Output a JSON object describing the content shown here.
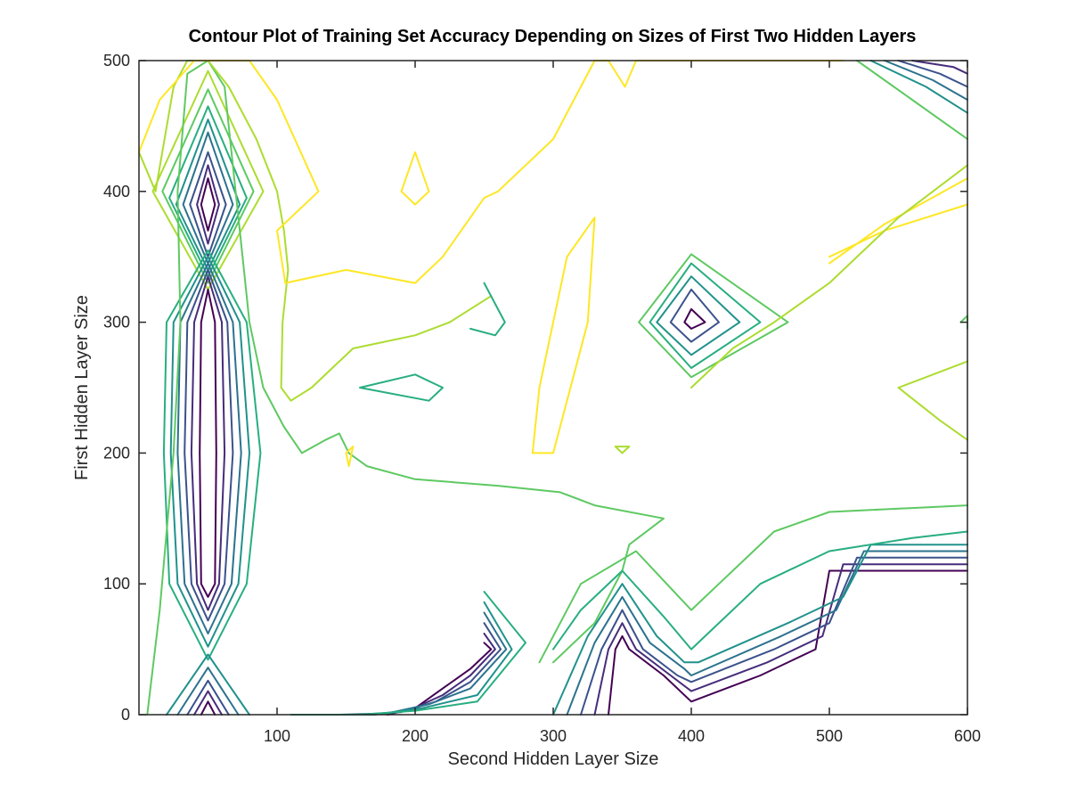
{
  "chart_data": {
    "type": "contour",
    "title": "Contour Plot of Training Set Accuracy Depending on Sizes of First Two Hidden Layers",
    "xlabel": "Second Hidden Layer Size",
    "ylabel": "First Hidden Layer Size",
    "xlim": [
      0,
      600
    ],
    "ylim": [
      0,
      500
    ],
    "xticks": [
      100,
      200,
      300,
      400,
      500,
      600
    ],
    "yticks": [
      0,
      100,
      200,
      300,
      400,
      500
    ],
    "grid": false,
    "colormap": "viridis",
    "colors": [
      "#440154",
      "#472d7b",
      "#3b528b",
      "#2c728e",
      "#21918c",
      "#28ae80",
      "#5ec962",
      "#addc30",
      "#fde725"
    ],
    "contours": [
      {
        "level": 1,
        "x": [
          50,
          55,
          50,
          45,
          50
        ],
        "y": [
          410,
          390,
          370,
          390,
          410
        ]
      },
      {
        "level": 2,
        "x": [
          50,
          58,
          50,
          42,
          50
        ],
        "y": [
          420,
          390,
          360,
          390,
          420
        ]
      },
      {
        "level": 3,
        "x": [
          50,
          63,
          50,
          37,
          50
        ],
        "y": [
          430,
          390,
          350,
          390,
          430
        ]
      },
      {
        "level": 4,
        "x": [
          50,
          68,
          50,
          32,
          50
        ],
        "y": [
          445,
          390,
          345,
          390,
          445
        ]
      },
      {
        "level": 5,
        "x": [
          50,
          73,
          50,
          27,
          50
        ],
        "y": [
          455,
          390,
          340,
          390,
          455
        ]
      },
      {
        "level": 6,
        "x": [
          50,
          78,
          50,
          22,
          50
        ],
        "y": [
          465,
          395,
          335,
          395,
          465
        ]
      },
      {
        "level": 7,
        "x": [
          50,
          83,
          50,
          17,
          50
        ],
        "y": [
          478,
          400,
          330,
          400,
          478
        ]
      },
      {
        "level": 8,
        "x": [
          50,
          90,
          50,
          10,
          50
        ],
        "y": [
          492,
          400,
          325,
          400,
          492
        ]
      },
      {
        "level": 1,
        "x": [
          50,
          55,
          56,
          55,
          50,
          45,
          44,
          45,
          50
        ],
        "y": [
          325,
          300,
          200,
          100,
          90,
          100,
          200,
          300,
          325
        ]
      },
      {
        "level": 2,
        "x": [
          50,
          60,
          62,
          58,
          50,
          42,
          38,
          40,
          50
        ],
        "y": [
          335,
          300,
          200,
          100,
          80,
          100,
          200,
          300,
          335
        ]
      },
      {
        "level": 3,
        "x": [
          50,
          64,
          68,
          62,
          50,
          38,
          33,
          35,
          50
        ],
        "y": [
          340,
          300,
          200,
          100,
          72,
          100,
          200,
          300,
          340
        ]
      },
      {
        "level": 4,
        "x": [
          50,
          68,
          74,
          67,
          50,
          33,
          28,
          30,
          50
        ],
        "y": [
          345,
          300,
          200,
          100,
          62,
          100,
          200,
          300,
          345
        ]
      },
      {
        "level": 5,
        "x": [
          50,
          73,
          80,
          72,
          50,
          28,
          23,
          25,
          50
        ],
        "y": [
          350,
          300,
          200,
          100,
          52,
          100,
          200,
          300,
          350
        ]
      },
      {
        "level": 6,
        "x": [
          50,
          78,
          88,
          78,
          50,
          22,
          18,
          20,
          50
        ],
        "y": [
          355,
          300,
          200,
          100,
          42,
          100,
          200,
          300,
          355
        ]
      },
      {
        "level": 1,
        "x": [
          45,
          50,
          55
        ],
        "y": [
          0,
          10,
          0
        ]
      },
      {
        "level": 2,
        "x": [
          40,
          50,
          60
        ],
        "y": [
          0,
          18,
          0
        ]
      },
      {
        "level": 3,
        "x": [
          35,
          50,
          65
        ],
        "y": [
          0,
          26,
          0
        ]
      },
      {
        "level": 4,
        "x": [
          28,
          50,
          72
        ],
        "y": [
          0,
          36,
          0
        ]
      },
      {
        "level": 5,
        "x": [
          20,
          50,
          80
        ],
        "y": [
          0,
          46,
          0
        ]
      },
      {
        "level": 7,
        "x": [
          6,
          15,
          25,
          30,
          28,
          35,
          50,
          62,
          70,
          75,
          80,
          90,
          105,
          118,
          135,
          145,
          152,
          165,
          200,
          260,
          305,
          330,
          380,
          355,
          350,
          340,
          330,
          320,
          300
        ],
        "y": [
          0,
          80,
          200,
          300,
          400,
          490,
          500,
          480,
          400,
          350,
          300,
          250,
          220,
          200,
          210,
          215,
          200,
          190,
          180,
          175,
          170,
          160,
          150,
          130,
          110,
          90,
          70,
          60,
          40
        ]
      },
      {
        "level": 8,
        "x": [
          0,
          12,
          25,
          35,
          50,
          65,
          85,
          100,
          105,
          108,
          104,
          103,
          110,
          125,
          155,
          200,
          225,
          255
        ],
        "y": [
          430,
          400,
          480,
          500,
          500,
          480,
          440,
          400,
          370,
          340,
          300,
          250,
          240,
          250,
          280,
          290,
          300,
          320
        ]
      },
      {
        "level": 9,
        "x": [
          0,
          15,
          40,
          55,
          80,
          100,
          130,
          100,
          106,
          150,
          200,
          220,
          250,
          260,
          300,
          330,
          340,
          352,
          360,
          372,
          400,
          430,
          455,
          470,
          490,
          500,
          510
        ],
        "y": [
          430,
          470,
          500,
          500,
          500,
          470,
          400,
          370,
          330,
          340,
          330,
          350,
          395,
          400,
          440,
          500,
          500,
          480,
          500,
          500,
          500,
          500,
          500,
          500,
          500,
          500,
          500
        ]
      },
      {
        "level": 9,
        "x": [
          190,
          200,
          210,
          200,
          190
        ],
        "y": [
          400,
          430,
          400,
          390,
          400
        ]
      },
      {
        "level": 9,
        "x": [
          150,
          155,
          152,
          150
        ],
        "y": [
          200,
          205,
          190,
          200
        ]
      },
      {
        "level": 9,
        "x": [
          300,
          310,
          330,
          325,
          300,
          285,
          290,
          300
        ],
        "y": [
          300,
          350,
          380,
          300,
          200,
          200,
          250,
          300
        ]
      },
      {
        "level": 9,
        "x": [
          500,
          540,
          600
        ],
        "y": [
          350,
          370,
          390
        ]
      },
      {
        "level": 9,
        "x": [
          500,
          540,
          600
        ],
        "y": [
          345,
          375,
          410
        ]
      },
      {
        "level": 6,
        "x": [
          160,
          200,
          220,
          210,
          160
        ],
        "y": [
          250,
          260,
          250,
          240,
          250
        ]
      },
      {
        "level": 6,
        "x": [
          250,
          265,
          258,
          240
        ],
        "y": [
          330,
          300,
          290,
          295
        ]
      },
      {
        "level": 1,
        "x": [
          400,
          410,
          400,
          395,
          400
        ],
        "y": [
          310,
          300,
          295,
          300,
          310
        ]
      },
      {
        "level": 3,
        "x": [
          400,
          420,
          400,
          385,
          400
        ],
        "y": [
          325,
          300,
          285,
          300,
          325
        ]
      },
      {
        "level": 5,
        "x": [
          400,
          435,
          400,
          375,
          400
        ],
        "y": [
          335,
          300,
          275,
          300,
          335
        ]
      },
      {
        "level": 6,
        "x": [
          400,
          450,
          400,
          370,
          400
        ],
        "y": [
          345,
          300,
          265,
          300,
          345
        ]
      },
      {
        "level": 7,
        "x": [
          400,
          470,
          400,
          362,
          400
        ],
        "y": [
          352,
          300,
          258,
          300,
          352
        ]
      },
      {
        "level": 8,
        "x": [
          345,
          350,
          355,
          345
        ],
        "y": [
          205,
          200,
          205,
          205
        ]
      },
      {
        "level": 1,
        "x": [
          250,
          255,
          240,
          220,
          200,
          180
        ],
        "y": [
          55,
          50,
          35,
          20,
          5,
          0
        ]
      },
      {
        "level": 2,
        "x": [
          250,
          258,
          240,
          220,
          195,
          170
        ],
        "y": [
          62,
          50,
          30,
          15,
          3,
          0
        ]
      },
      {
        "level": 3,
        "x": [
          250,
          262,
          240,
          215,
          190,
          160
        ],
        "y": [
          70,
          50,
          25,
          10,
          2,
          0
        ]
      },
      {
        "level": 4,
        "x": [
          250,
          266,
          240,
          210,
          180,
          145
        ],
        "y": [
          78,
          50,
          20,
          8,
          1,
          0
        ]
      },
      {
        "level": 5,
        "x": [
          250,
          270,
          245,
          205,
          170,
          130
        ],
        "y": [
          86,
          50,
          15,
          5,
          0,
          0
        ]
      },
      {
        "level": 6,
        "x": [
          250,
          280,
          245,
          200,
          160,
          110
        ],
        "y": [
          94,
          55,
          10,
          3,
          0,
          0
        ]
      },
      {
        "level": 1,
        "x": [
          340,
          345,
          350,
          355,
          380,
          400,
          450,
          490,
          500,
          600
        ],
        "y": [
          0,
          50,
          60,
          50,
          30,
          10,
          30,
          50,
          110,
          110
        ]
      },
      {
        "level": 2,
        "x": [
          330,
          340,
          350,
          360,
          385,
          400,
          455,
          495,
          510,
          600
        ],
        "y": [
          0,
          50,
          70,
          50,
          30,
          18,
          40,
          60,
          115,
          115
        ]
      },
      {
        "level": 3,
        "x": [
          320,
          335,
          350,
          365,
          390,
          400,
          460,
          500,
          520,
          600
        ],
        "y": [
          0,
          50,
          80,
          50,
          30,
          25,
          50,
          70,
          120,
          120
        ]
      },
      {
        "level": 4,
        "x": [
          310,
          330,
          350,
          370,
          395,
          400,
          465,
          505,
          525,
          600
        ],
        "y": [
          0,
          55,
          90,
          55,
          35,
          30,
          60,
          80,
          125,
          125
        ]
      },
      {
        "level": 5,
        "x": [
          300,
          325,
          350,
          375,
          395,
          405,
          470,
          510,
          530,
          600
        ],
        "y": [
          0,
          60,
          100,
          60,
          40,
          40,
          70,
          90,
          130,
          130
        ]
      },
      {
        "level": 6,
        "x": [
          300,
          320,
          350,
          380,
          400,
          410,
          450,
          500,
          560,
          600
        ],
        "y": [
          50,
          80,
          110,
          75,
          50,
          60,
          100,
          125,
          135,
          140
        ]
      },
      {
        "level": 7,
        "x": [
          290,
          320,
          360,
          400,
          420,
          460,
          500,
          600
        ],
        "y": [
          40,
          100,
          125,
          80,
          100,
          140,
          155,
          160
        ]
      },
      {
        "level": 7,
        "x": [
          520,
          560,
          600,
          600
        ],
        "y": [
          500,
          470,
          440,
          440
        ]
      },
      {
        "level": 5,
        "x": [
          530,
          570,
          600
        ],
        "y": [
          500,
          480,
          460
        ]
      },
      {
        "level": 4,
        "x": [
          540,
          575,
          600
        ],
        "y": [
          500,
          485,
          470
        ]
      },
      {
        "level": 3,
        "x": [
          550,
          580,
          600
        ],
        "y": [
          500,
          490,
          480
        ]
      },
      {
        "level": 2,
        "x": [
          560,
          590,
          600
        ],
        "y": [
          500,
          495,
          490
        ]
      },
      {
        "level": 8,
        "x": [
          400,
          430,
          460,
          500,
          550,
          600
        ],
        "y": [
          250,
          280,
          300,
          330,
          380,
          420
        ]
      },
      {
        "level": 8,
        "x": [
          550,
          580,
          600
        ],
        "y": [
          250,
          225,
          210
        ]
      },
      {
        "level": 8,
        "x": [
          550,
          600
        ],
        "y": [
          250,
          270
        ]
      },
      {
        "level": 7,
        "x": [
          595,
          600,
          600
        ],
        "y": [
          300,
          305,
          295
        ]
      }
    ]
  }
}
